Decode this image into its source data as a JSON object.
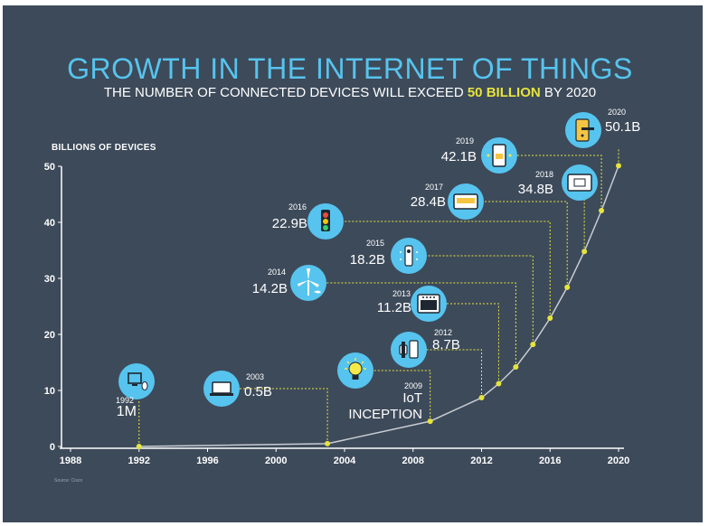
{
  "title": "GROWTH IN THE INTERNET OF THINGS",
  "subtitle": {
    "before": "THE NUMBER OF CONNECTED DEVICES WILL EXCEED ",
    "highlight": "50 BILLION",
    "after": " BY 2020"
  },
  "source": "Source: Cisco",
  "colors": {
    "background": "#3d4a5a",
    "title": "#56c4ee",
    "highlight": "#e6e43c",
    "icon_circle": "#56c4ee",
    "curve": "#c8ccd2",
    "dot": "#e6e43c"
  },
  "chart_data": {
    "type": "line",
    "ylabel": "BILLIONS OF DEVICES",
    "xlim": [
      1988,
      2020
    ],
    "ylim": [
      0,
      50
    ],
    "x_ticks": [
      "1988",
      "1992",
      "1996",
      "2000",
      "2004",
      "2008",
      "2012",
      "2016",
      "2020"
    ],
    "y_ticks": [
      "0",
      "10",
      "20",
      "30",
      "40",
      "50"
    ],
    "grid": false,
    "points": [
      {
        "year": 1992,
        "value": 0.001,
        "year_label": "1992",
        "value_label": "1M",
        "icon": "computer-mouse-icon"
      },
      {
        "year": 2003,
        "value": 0.5,
        "year_label": "2003",
        "value_label": "0.5B",
        "icon": "laptop-icon"
      },
      {
        "year": 2009,
        "value": 4.5,
        "year_label": "2009",
        "value_label": "IoT INCEPTION",
        "icon": "lightbulb-icon"
      },
      {
        "year": 2012,
        "value": 8.7,
        "year_label": "2012",
        "value_label": "8.7B",
        "icon": "smartwatch-phone-icon"
      },
      {
        "year": 2013,
        "value": 11.2,
        "year_label": "2013",
        "value_label": "11.2B",
        "icon": "oven-icon"
      },
      {
        "year": 2014,
        "value": 14.2,
        "year_label": "2014",
        "value_label": "14.2B",
        "icon": "wind-turbine-icon"
      },
      {
        "year": 2015,
        "value": 18.2,
        "year_label": "2015",
        "value_label": "18.2B",
        "icon": "sensor-icon"
      },
      {
        "year": 2016,
        "value": 22.9,
        "year_label": "2016",
        "value_label": "22.9B",
        "icon": "traffic-light-icon"
      },
      {
        "year": 2017,
        "value": 28.4,
        "year_label": "2017",
        "value_label": "28.4B",
        "icon": "smart-meter-icon"
      },
      {
        "year": 2018,
        "value": 34.8,
        "year_label": "2018",
        "value_label": "34.8B",
        "icon": "thermostat-icon"
      },
      {
        "year": 2019,
        "value": 42.1,
        "year_label": "2019",
        "value_label": "42.1B",
        "icon": "smartphone-icon"
      },
      {
        "year": 2020,
        "value": 50.1,
        "year_label": "2020",
        "value_label": "50.1B",
        "icon": "smart-lock-icon"
      }
    ]
  }
}
